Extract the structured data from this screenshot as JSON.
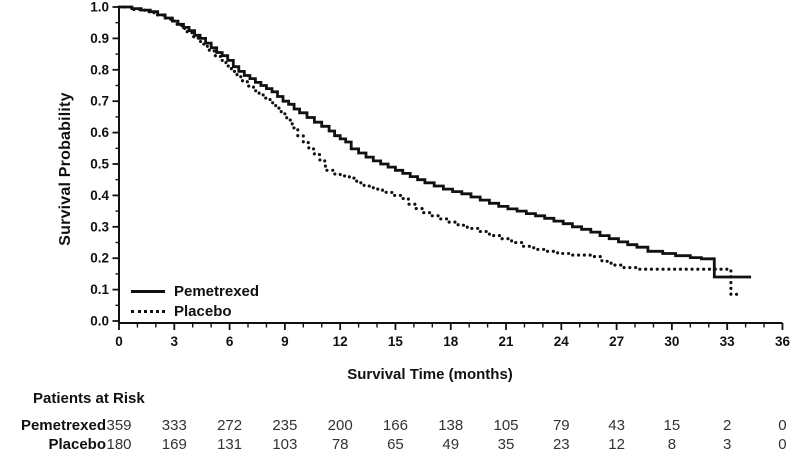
{
  "colors": {
    "ink": "#111111",
    "table_number": "#333333"
  },
  "risk_table": {
    "title": "Patients at Risk",
    "time_points": [
      0,
      3,
      6,
      9,
      12,
      15,
      18,
      21,
      24,
      27,
      30,
      33,
      36
    ],
    "rows": [
      {
        "label": "Pemetrexed",
        "counts": [
          "359",
          "333",
          "272",
          "235",
          "200",
          "166",
          "138",
          "105",
          "79",
          "43",
          "15",
          "2",
          "0"
        ]
      },
      {
        "label": "Placebo",
        "counts": [
          "180",
          "169",
          "131",
          "103",
          "78",
          "65",
          "49",
          "35",
          "23",
          "12",
          "8",
          "3",
          "0"
        ]
      }
    ]
  },
  "chart_data": {
    "type": "line",
    "subtype": "kaplan-meier-step",
    "title": "",
    "xlabel": "Survival Time (months)",
    "ylabel": "Survival Probability",
    "xlim": [
      0,
      36
    ],
    "ylim": [
      0.0,
      1.0
    ],
    "x_tick_labels": [
      "0",
      "3",
      "6",
      "9",
      "12",
      "15",
      "18",
      "21",
      "24",
      "27",
      "30",
      "33",
      "36"
    ],
    "y_tick_labels": [
      "1.0",
      "0.9",
      "0.8",
      "0.7",
      "0.6",
      "0.5",
      "0.4",
      "0.3",
      "0.2",
      "0.1",
      "0.0"
    ],
    "x_major_step": 3,
    "x_minor_step": 1,
    "y_major_step": 0.1,
    "y_minor_step": 0.05,
    "grid": false,
    "legend_position": "lower-left",
    "series": [
      {
        "name": "Pemetrexed",
        "line_style": "solid",
        "end_t": 34.3,
        "points": [
          [
            0,
            1.0
          ],
          [
            0.7,
            0.995
          ],
          [
            1.2,
            0.99
          ],
          [
            1.7,
            0.985
          ],
          [
            2.1,
            0.975
          ],
          [
            2.5,
            0.965
          ],
          [
            2.9,
            0.955
          ],
          [
            3.2,
            0.945
          ],
          [
            3.5,
            0.935
          ],
          [
            3.8,
            0.925
          ],
          [
            4.1,
            0.91
          ],
          [
            4.4,
            0.9
          ],
          [
            4.7,
            0.885
          ],
          [
            5.0,
            0.87
          ],
          [
            5.3,
            0.855
          ],
          [
            5.6,
            0.845
          ],
          [
            5.9,
            0.83
          ],
          [
            6.2,
            0.81
          ],
          [
            6.5,
            0.795
          ],
          [
            6.8,
            0.782
          ],
          [
            7.1,
            0.772
          ],
          [
            7.4,
            0.76
          ],
          [
            7.7,
            0.75
          ],
          [
            8.0,
            0.74
          ],
          [
            8.3,
            0.73
          ],
          [
            8.6,
            0.715
          ],
          [
            8.9,
            0.7
          ],
          [
            9.2,
            0.69
          ],
          [
            9.5,
            0.675
          ],
          [
            9.8,
            0.663
          ],
          [
            10.2,
            0.648
          ],
          [
            10.6,
            0.633
          ],
          [
            11.0,
            0.62
          ],
          [
            11.4,
            0.605
          ],
          [
            11.7,
            0.59
          ],
          [
            12.0,
            0.58
          ],
          [
            12.3,
            0.57
          ],
          [
            12.6,
            0.548
          ],
          [
            13.0,
            0.535
          ],
          [
            13.4,
            0.522
          ],
          [
            13.8,
            0.51
          ],
          [
            14.2,
            0.5
          ],
          [
            14.6,
            0.49
          ],
          [
            15.0,
            0.48
          ],
          [
            15.4,
            0.47
          ],
          [
            15.8,
            0.46
          ],
          [
            16.2,
            0.45
          ],
          [
            16.6,
            0.44
          ],
          [
            17.1,
            0.43
          ],
          [
            17.6,
            0.42
          ],
          [
            18.1,
            0.412
          ],
          [
            18.6,
            0.405
          ],
          [
            19.1,
            0.395
          ],
          [
            19.6,
            0.385
          ],
          [
            20.1,
            0.375
          ],
          [
            20.6,
            0.365
          ],
          [
            21.1,
            0.357
          ],
          [
            21.6,
            0.35
          ],
          [
            22.1,
            0.342
          ],
          [
            22.6,
            0.335
          ],
          [
            23.1,
            0.327
          ],
          [
            23.6,
            0.318
          ],
          [
            24.1,
            0.31
          ],
          [
            24.6,
            0.3
          ],
          [
            25.1,
            0.292
          ],
          [
            25.6,
            0.283
          ],
          [
            26.1,
            0.272
          ],
          [
            26.6,
            0.262
          ],
          [
            27.1,
            0.252
          ],
          [
            27.6,
            0.243
          ],
          [
            28.1,
            0.235
          ],
          [
            28.7,
            0.222
          ],
          [
            29.5,
            0.215
          ],
          [
            30.2,
            0.208
          ],
          [
            31.0,
            0.202
          ],
          [
            31.6,
            0.198
          ],
          [
            32.3,
            0.14
          ]
        ]
      },
      {
        "name": "Placebo",
        "line_style": "dotted",
        "end_t": 33.8,
        "points": [
          [
            0,
            1.0
          ],
          [
            0.8,
            0.992
          ],
          [
            1.4,
            0.985
          ],
          [
            1.9,
            0.975
          ],
          [
            2.4,
            0.965
          ],
          [
            2.8,
            0.955
          ],
          [
            3.1,
            0.945
          ],
          [
            3.4,
            0.932
          ],
          [
            3.7,
            0.918
          ],
          [
            4.0,
            0.905
          ],
          [
            4.3,
            0.89
          ],
          [
            4.6,
            0.875
          ],
          [
            4.9,
            0.86
          ],
          [
            5.2,
            0.845
          ],
          [
            5.5,
            0.83
          ],
          [
            5.8,
            0.812
          ],
          [
            6.1,
            0.795
          ],
          [
            6.4,
            0.778
          ],
          [
            6.7,
            0.762
          ],
          [
            7.0,
            0.748
          ],
          [
            7.3,
            0.733
          ],
          [
            7.6,
            0.72
          ],
          [
            7.9,
            0.71
          ],
          [
            8.2,
            0.695
          ],
          [
            8.5,
            0.678
          ],
          [
            8.8,
            0.66
          ],
          [
            9.1,
            0.64
          ],
          [
            9.4,
            0.615
          ],
          [
            9.7,
            0.59
          ],
          [
            10.0,
            0.568
          ],
          [
            10.3,
            0.548
          ],
          [
            10.6,
            0.53
          ],
          [
            10.9,
            0.51
          ],
          [
            11.2,
            0.48
          ],
          [
            11.6,
            0.468
          ],
          [
            12.0,
            0.462
          ],
          [
            12.5,
            0.455
          ],
          [
            12.9,
            0.44
          ],
          [
            13.3,
            0.43
          ],
          [
            13.8,
            0.42
          ],
          [
            14.3,
            0.41
          ],
          [
            14.8,
            0.4
          ],
          [
            15.3,
            0.39
          ],
          [
            15.7,
            0.372
          ],
          [
            16.1,
            0.358
          ],
          [
            16.5,
            0.345
          ],
          [
            16.9,
            0.335
          ],
          [
            17.4,
            0.325
          ],
          [
            17.9,
            0.315
          ],
          [
            18.4,
            0.305
          ],
          [
            18.9,
            0.295
          ],
          [
            19.5,
            0.285
          ],
          [
            20.1,
            0.272
          ],
          [
            20.7,
            0.262
          ],
          [
            21.3,
            0.25
          ],
          [
            21.9,
            0.238
          ],
          [
            22.5,
            0.228
          ],
          [
            23.1,
            0.222
          ],
          [
            23.8,
            0.215
          ],
          [
            24.6,
            0.21
          ],
          [
            25.6,
            0.205
          ],
          [
            26.2,
            0.19
          ],
          [
            26.7,
            0.178
          ],
          [
            27.3,
            0.17
          ],
          [
            28.2,
            0.165
          ],
          [
            33.2,
            0.085
          ]
        ]
      }
    ]
  }
}
